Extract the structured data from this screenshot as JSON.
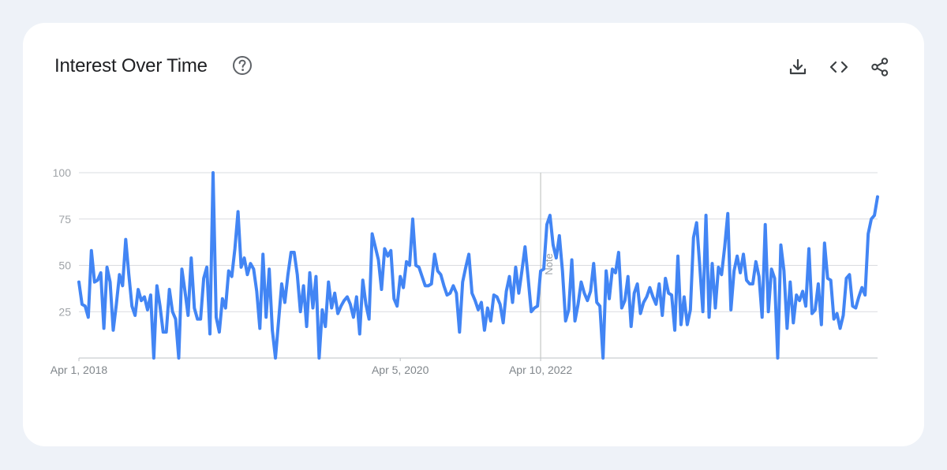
{
  "card": {
    "title": "Interest Over Time",
    "help_icon": "help-circle-icon",
    "actions": [
      {
        "name": "download",
        "icon": "download-icon"
      },
      {
        "name": "embed",
        "icon": "code-icon"
      },
      {
        "name": "share",
        "icon": "share-icon"
      }
    ]
  },
  "chart_data": {
    "type": "line",
    "title": "",
    "xlabel": "",
    "ylabel": "",
    "ylim": [
      0,
      100
    ],
    "yticks": [
      25,
      50,
      75,
      100
    ],
    "x_tick_labels": [
      "Apr 1, 2018",
      "Apr 5, 2020",
      "Apr 10, 2022"
    ],
    "grid": true,
    "annotation": {
      "label": "Note",
      "at_week": 148
    },
    "color": "#4285f4",
    "series": [
      {
        "values": [
          41,
          29,
          28,
          22,
          58,
          41,
          42,
          46,
          16,
          49,
          41,
          15,
          29,
          45,
          39,
          64,
          45,
          28,
          23,
          37,
          31,
          33,
          26,
          34,
          0,
          39,
          28,
          14,
          14,
          37,
          25,
          21,
          0,
          48,
          36,
          23,
          54,
          27,
          21,
          21,
          43,
          49,
          13,
          100,
          22,
          14,
          32,
          27,
          47,
          44,
          59,
          79,
          49,
          54,
          45,
          51,
          48,
          36,
          16,
          56,
          22,
          48,
          15,
          0,
          20,
          40,
          30,
          45,
          57,
          57,
          45,
          25,
          39,
          17,
          46,
          27,
          44,
          0,
          26,
          17,
          41,
          27,
          35,
          24,
          28,
          31,
          33,
          29,
          22,
          33,
          13,
          42,
          29,
          21,
          67,
          60,
          53,
          37,
          59,
          55,
          58,
          32,
          28,
          44,
          38,
          52,
          50,
          75,
          50,
          49,
          44,
          39,
          39,
          40,
          56,
          47,
          45,
          39,
          34,
          35,
          39,
          35,
          14,
          41,
          49,
          56,
          35,
          31,
          26,
          30,
          15,
          27,
          20,
          34,
          33,
          29,
          19,
          36,
          44,
          30,
          49,
          35,
          47,
          60,
          43,
          25,
          27,
          28,
          47,
          48,
          72,
          77,
          61,
          54,
          66,
          47,
          20,
          26,
          53,
          20,
          29,
          41,
          35,
          31,
          36,
          51,
          30,
          28,
          0,
          47,
          32,
          48,
          46,
          57,
          27,
          31,
          44,
          17,
          35,
          40,
          24,
          30,
          33,
          38,
          33,
          29,
          40,
          23,
          43,
          35,
          34,
          15,
          55,
          18,
          33,
          18,
          26,
          65,
          73,
          50,
          25,
          77,
          22,
          51,
          27,
          49,
          45,
          60,
          78,
          26,
          47,
          55,
          46,
          56,
          42,
          40,
          40,
          52,
          44,
          22,
          72,
          25,
          48,
          43,
          0,
          61,
          47,
          16,
          41,
          19,
          34,
          31,
          36,
          28,
          59,
          24,
          26,
          40,
          18,
          62,
          43,
          42,
          21,
          24,
          16,
          23,
          43,
          45,
          28,
          27,
          33,
          38,
          34,
          67,
          75,
          77,
          87
        ]
      }
    ]
  }
}
